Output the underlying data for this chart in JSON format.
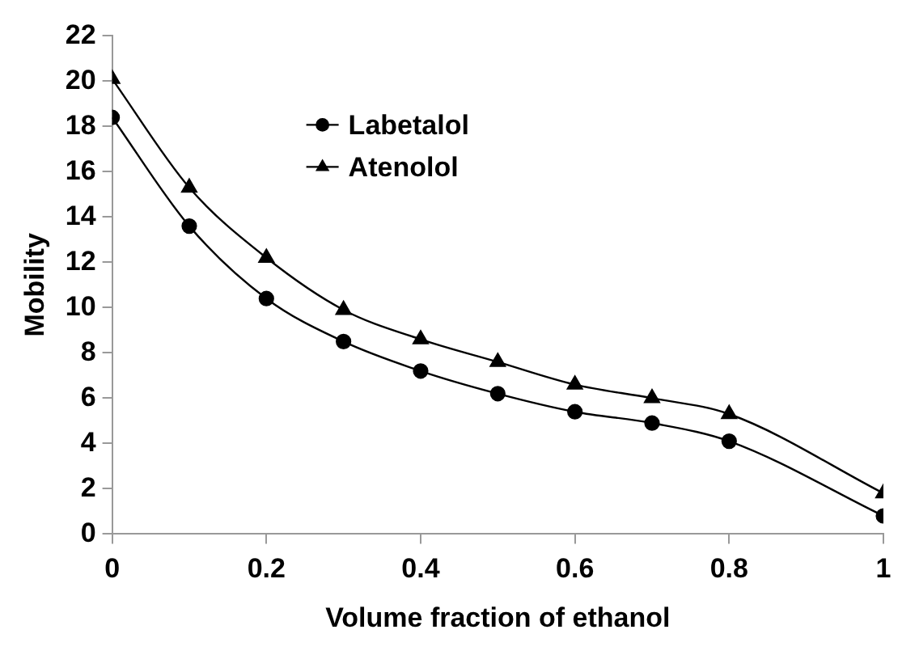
{
  "chart_data": {
    "type": "line",
    "xlabel": "Volume fraction of ethanol",
    "ylabel": "Mobility",
    "x": [
      0,
      0.1,
      0.2,
      0.3,
      0.4,
      0.5,
      0.6,
      0.7,
      0.8,
      1
    ],
    "series": [
      {
        "name": "Labetalol",
        "color": "#000000",
        "marker": "circle",
        "values": [
          18.4,
          13.6,
          10.4,
          8.5,
          7.2,
          6.2,
          5.4,
          4.9,
          4.1,
          0.8
        ]
      },
      {
        "name": "Atenolol",
        "color": "#000000",
        "marker": "triangle",
        "values": [
          20.1,
          15.3,
          12.2,
          9.9,
          8.6,
          7.6,
          6.6,
          6.0,
          5.3,
          1.8
        ]
      }
    ],
    "xlim": [
      0,
      1
    ],
    "xticks": [
      0,
      0.2,
      0.4,
      0.6,
      0.8,
      1
    ],
    "ylim": [
      0,
      22
    ],
    "yticks": [
      0,
      2,
      4,
      6,
      8,
      10,
      12,
      14,
      16,
      18,
      20,
      22
    ],
    "grid": false,
    "legend": "top left"
  }
}
